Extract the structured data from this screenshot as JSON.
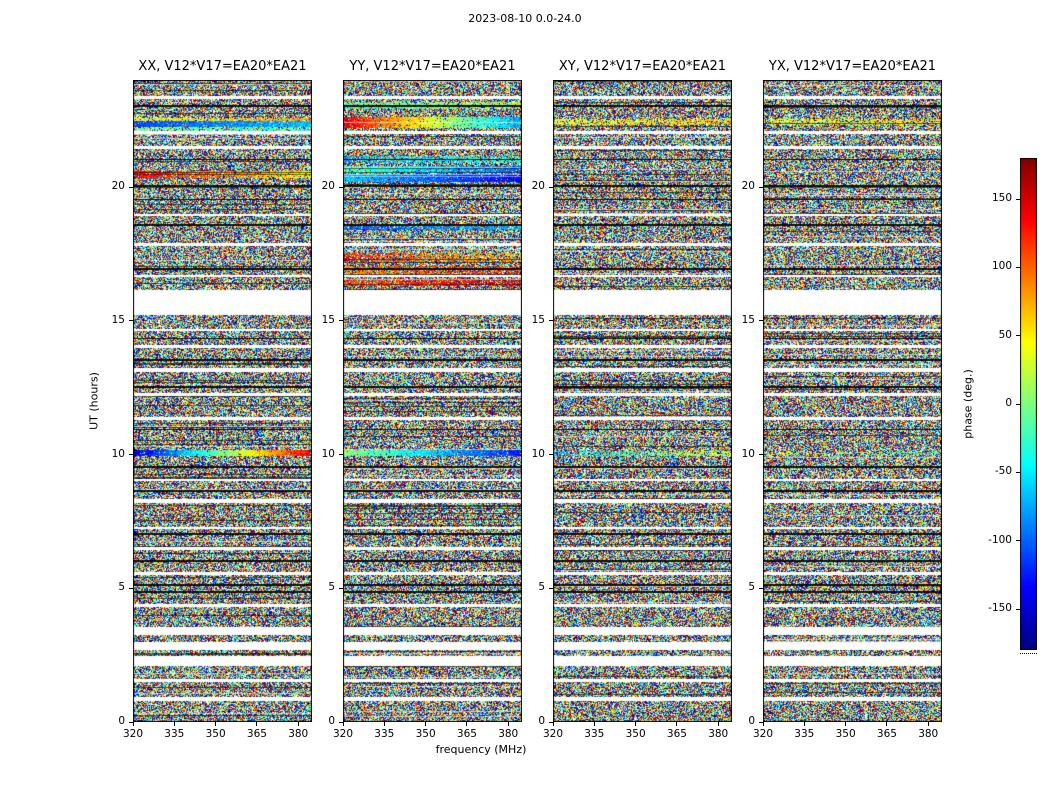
{
  "chart_data": {
    "type": "heatmap",
    "title": "2023-08-10 0.0-24.0",
    "xlabel": "frequency (MHz)",
    "ylabel": "UT (hours)",
    "x_range": [
      320,
      385
    ],
    "y_range": [
      0,
      24
    ],
    "x_ticks": [
      "320",
      "335",
      "350",
      "365",
      "380"
    ],
    "x_tick_values": [
      320,
      335,
      350,
      365,
      380
    ],
    "y_ticks": [
      "0",
      "5",
      "10",
      "15",
      "20"
    ],
    "y_tick_values": [
      0,
      5,
      10,
      15,
      20
    ],
    "content": "random interferometric visibility phase noise vs frequency and time",
    "panels": [
      {
        "id": "XX",
        "title": "XX, V12*V17=EA20*EA21",
        "features": [
          {
            "ut": [
              9.95,
              10.15
            ],
            "t0": 0.08,
            "t1": 0.9,
            "density": 0.92
          },
          {
            "ut": [
              20.35,
              20.6
            ],
            "t0": 0.88,
            "t1": 0.62,
            "density": 0.7
          },
          {
            "ut": [
              22.08,
              22.25
            ],
            "t0": 0.5,
            "t1": 0.42,
            "density": 0.6
          },
          {
            "ut": [
              22.25,
              22.45
            ],
            "t0": 0.2,
            "t1": 0.32,
            "density": 0.9
          },
          {
            "ut": [
              22.45,
              22.58
            ],
            "t0": 0.62,
            "t1": 0.72,
            "density": 0.75
          }
        ]
      },
      {
        "id": "YY",
        "title": "YY, V12*V17=EA20*EA21",
        "features": [
          {
            "ut": [
              9.95,
              10.15
            ],
            "t0": 0.52,
            "t1": 0.14,
            "density": 0.92
          },
          {
            "ut": [
              16.3,
              16.55
            ],
            "t0": 0.8,
            "t1": 0.9,
            "density": 0.6
          },
          {
            "ut": [
              16.7,
              17.05
            ],
            "t0": 0.75,
            "t1": 0.85,
            "density": 0.5
          },
          {
            "ut": [
              17.2,
              17.55
            ],
            "t0": 0.85,
            "t1": 0.68,
            "density": 0.5
          },
          {
            "ut": [
              18.4,
              18.55
            ],
            "t0": 0.2,
            "t1": 0.3,
            "density": 0.7
          },
          {
            "ut": [
              20.2,
              20.48
            ],
            "t0": 0.32,
            "t1": 0.12,
            "density": 0.88
          },
          {
            "ut": [
              20.52,
              20.78
            ],
            "t0": 0.45,
            "t1": 0.22,
            "density": 0.8
          },
          {
            "ut": [
              20.9,
              21.15
            ],
            "t0": 0.3,
            "t1": 0.42,
            "density": 0.6
          },
          {
            "ut": [
              22.2,
              22.62
            ],
            "t0": 0.9,
            "t1": 0.28,
            "density": 0.85
          },
          {
            "ut": [
              22.9,
              23.18
            ],
            "t0": 0.45,
            "t1": 0.55,
            "density": 0.65
          }
        ]
      },
      {
        "id": "XY",
        "title": "XY, V12*V17=EA20*EA21",
        "features": [
          {
            "ut": [
              9.95,
              10.12
            ],
            "t0": 0.3,
            "t1": 0.6,
            "density": 0.45
          },
          {
            "ut": [
              22.3,
              22.55
            ],
            "t0": 0.6,
            "t1": 0.68,
            "density": 0.55
          }
        ]
      },
      {
        "id": "YX",
        "title": "YX, V12*V17=EA20*EA21",
        "features": [
          {
            "ut": [
              9.98,
              10.1
            ],
            "t0": 0.62,
            "t1": 0.4,
            "density": 0.4
          },
          {
            "ut": [
              22.3,
              22.55
            ],
            "t0": 0.58,
            "t1": 0.66,
            "density": 0.5
          }
        ]
      }
    ],
    "time_gaps_ut": [
      [
        0.78,
        0.95
      ],
      [
        1.5,
        1.62
      ],
      [
        2.1,
        2.45
      ],
      [
        2.7,
        3.0
      ],
      [
        3.25,
        3.55
      ],
      [
        4.3,
        4.42
      ],
      [
        5.5,
        5.62
      ],
      [
        6.42,
        6.54
      ],
      [
        7.2,
        7.3
      ],
      [
        8.2,
        8.34
      ],
      [
        9.0,
        9.1
      ],
      [
        11.3,
        11.42
      ],
      [
        12.2,
        12.3
      ],
      [
        13.1,
        13.22
      ],
      [
        14.0,
        14.1
      ],
      [
        14.6,
        14.7
      ],
      [
        15.2,
        16.15
      ],
      [
        16.62,
        16.7
      ],
      [
        17.8,
        17.9
      ],
      [
        18.9,
        19.0
      ],
      [
        21.42,
        21.54
      ],
      [
        22.0,
        22.08
      ],
      [
        23.3,
        23.42
      ]
    ],
    "dark_rows_ut": [
      [
        4.82,
        4.9
      ],
      [
        5.1,
        5.16
      ],
      [
        6.0,
        6.06
      ],
      [
        7.0,
        7.06
      ],
      [
        8.6,
        8.66
      ],
      [
        9.5,
        9.56
      ],
      [
        10.9,
        10.96
      ],
      [
        12.5,
        12.56
      ],
      [
        13.5,
        13.56
      ],
      [
        14.3,
        14.36
      ],
      [
        16.9,
        16.96
      ],
      [
        18.55,
        18.62
      ],
      [
        19.5,
        19.56
      ],
      [
        20.0,
        20.06
      ],
      [
        21.0,
        21.06
      ],
      [
        23.0,
        23.06
      ]
    ],
    "colorbar": {
      "label": "phase (deg.)",
      "ticks": [
        "-150",
        "-100",
        "-50",
        "0",
        "50",
        "100",
        "150"
      ],
      "tick_values": [
        -150,
        -100,
        -50,
        0,
        50,
        100,
        150
      ],
      "range": [
        -180,
        180
      ],
      "colormap": "jet"
    }
  }
}
